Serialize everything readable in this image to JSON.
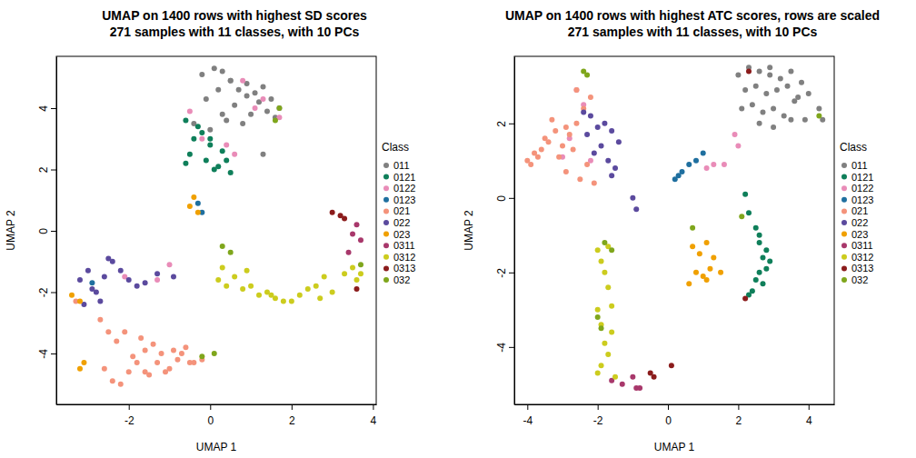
{
  "chart_data": [
    {
      "type": "scatter",
      "title": "UMAP on 1400 rows with highest SD scores",
      "subtitle": "271 samples with 11 classes, with 10 PCs",
      "x_label": "UMAP 1",
      "y_label": "UMAP 2",
      "legend_title": "Class",
      "legend": "right",
      "marker": "circle",
      "xlim": [
        -3.78,
        4.08
      ],
      "ylim": [
        -5.66,
        5.69
      ],
      "xticks": [
        -2,
        0,
        2,
        4
      ],
      "yticks": [
        -4,
        -2,
        0,
        2,
        4
      ],
      "series": [
        {
          "name": "011",
          "color": "#808080",
          "x": [
            -0.2,
            0.1,
            0.3,
            0.5,
            0.7,
            0.9,
            1.1,
            1.3,
            1.5,
            1.7,
            0.2,
            0.6,
            1.0,
            1.4,
            -0.1,
            0.4,
            0.8,
            1.2,
            1.6,
            -0.4,
            0,
            0.3,
            1.3,
            0.9,
            0.5
          ],
          "y": [
            5.1,
            5.3,
            5.2,
            4.9,
            4.6,
            4.8,
            4.5,
            4.7,
            4.3,
            4.0,
            4.6,
            4.1,
            3.8,
            3.9,
            4.3,
            3.6,
            3.5,
            4.2,
            3.7,
            3.5,
            3.3,
            3.8,
            2.5,
            4.4,
            4.9
          ]
        },
        {
          "name": "0121",
          "color": "#0f7f5a",
          "x": [
            -0.6,
            -0.3,
            0,
            0.3,
            -0.5,
            -0.1,
            0.2,
            0.5,
            -0.4,
            0,
            -0.6,
            0.4,
            -0.2,
            0.1
          ],
          "y": [
            3.6,
            3.4,
            3.0,
            2.6,
            2.5,
            2.3,
            2.1,
            1.9,
            3.0,
            2.8,
            2.2,
            2.3,
            3.2,
            2.0
          ]
        },
        {
          "name": "0122",
          "color": "#e98cb8",
          "x": [
            1.3,
            1.7,
            0.8,
            0.4,
            -0.5,
            -0.2,
            1.1,
            -1.3,
            -1.0,
            -2.1,
            0.6
          ],
          "y": [
            4.3,
            3.7,
            4.9,
            2.8,
            3.9,
            3.0,
            4.0,
            -1.6,
            -1.1,
            -1.5,
            2.5
          ]
        },
        {
          "name": "0123",
          "color": "#1f6f9f",
          "x": [
            -0.3,
            -0.2,
            -2.9
          ],
          "y": [
            0.9,
            0.6,
            -1.7
          ]
        },
        {
          "name": "021",
          "color": "#f4937b",
          "x": [
            -2.4,
            -2.2,
            -2.0,
            -1.8,
            -1.6,
            -1.4,
            -1.2,
            -1.0,
            -0.8,
            -0.6,
            -0.4,
            -0.2,
            -2.6,
            -2.3,
            -1.9,
            -1.5,
            -1.1,
            -0.7,
            -2.1,
            -1.7,
            -1.3,
            -0.9,
            -3.3,
            -2.7,
            -2.5,
            -1.6,
            -0.5
          ],
          "y": [
            -4.9,
            -5.0,
            -4.6,
            -4.3,
            -3.9,
            -3.7,
            -4.0,
            -4.5,
            -4.2,
            -3.8,
            -4.3,
            -4.2,
            -4.5,
            -3.6,
            -4.1,
            -4.7,
            -4.6,
            -4.0,
            -3.3,
            -3.5,
            -4.3,
            -3.9,
            -2.3,
            -2.9,
            -3.3,
            -4.6,
            -4.3
          ]
        },
        {
          "name": "022",
          "color": "#5b4a9e",
          "x": [
            -3.2,
            -3.0,
            -2.8,
            -2.6,
            -2.4,
            -2.2,
            -2.0,
            -1.8,
            -1.6,
            -2.7,
            -3.1,
            -2.5,
            -1.3,
            -0.9,
            -2.9
          ],
          "y": [
            -1.6,
            -1.3,
            -2.0,
            -1.5,
            -1.0,
            -1.3,
            -1.6,
            -1.8,
            -1.7,
            -2.3,
            -2.4,
            -0.9,
            -1.4,
            -1.5,
            -1.9
          ]
        },
        {
          "name": "023",
          "color": "#f0a000",
          "x": [
            -3.2,
            -3.1,
            -3.4,
            -3.2,
            -0.4,
            -0.5,
            -0.3
          ],
          "y": [
            -4.5,
            -4.3,
            -2.1,
            -2.3,
            1.1,
            0.8,
            0.6
          ]
        },
        {
          "name": "0311",
          "color": "#a8386b",
          "x": [
            3.6,
            3.5,
            3.7,
            3.4
          ],
          "y": [
            0.2,
            -0.1,
            -0.3,
            -0.7
          ]
        },
        {
          "name": "0312",
          "color": "#cccc1e",
          "x": [
            0.2,
            0.4,
            0.6,
            0.8,
            1.0,
            1.2,
            1.4,
            1.6,
            1.8,
            2.0,
            2.2,
            2.4,
            2.6,
            2.8,
            3.0,
            3.3,
            3.5,
            3.7,
            0.3,
            0.9,
            1.5,
            2.7,
            3.6
          ],
          "y": [
            -1.6,
            -1.8,
            -1.5,
            -1.9,
            -1.8,
            -2.1,
            -2.0,
            -2.2,
            -2.3,
            -2.3,
            -2.1,
            -1.9,
            -1.8,
            -1.5,
            -2.0,
            -1.4,
            -1.2,
            -1.4,
            -1.2,
            -1.3,
            -2.1,
            -2.2,
            -1.6
          ]
        },
        {
          "name": "0313",
          "color": "#8b1c1c",
          "x": [
            3.0,
            3.2,
            3.3,
            3.6
          ],
          "y": [
            0.6,
            0.5,
            0.4,
            -1.9
          ]
        },
        {
          "name": "032",
          "color": "#7fa61c",
          "x": [
            1.7,
            1.6,
            0.3,
            -0.2,
            0.1,
            0.5,
            3.7
          ],
          "y": [
            4.0,
            3.6,
            -0.5,
            -4.1,
            -4.0,
            -0.7,
            -1.1
          ]
        }
      ]
    },
    {
      "type": "scatter",
      "title": "UMAP on 1400 rows with highest ATC scores, rows are scaled",
      "subtitle": "271 samples with 11 classes, with 10 PCs",
      "x_label": "UMAP 1",
      "y_label": "UMAP 2",
      "legend_title": "Class",
      "legend": "right",
      "marker": "circle",
      "xlim": [
        -4.37,
        4.73
      ],
      "ylim": [
        -5.54,
        3.8
      ],
      "xticks": [
        -4,
        -2,
        0,
        2,
        4
      ],
      "yticks": [
        -4,
        -2,
        0,
        2
      ],
      "series": [
        {
          "name": "011",
          "color": "#808080",
          "x": [
            2.0,
            2.3,
            2.6,
            2.9,
            3.2,
            3.5,
            3.8,
            2.2,
            2.5,
            2.8,
            3.1,
            3.4,
            3.7,
            4.0,
            2.1,
            2.4,
            2.7,
            3.0,
            3.3,
            3.6,
            3.9,
            4.3,
            4.4,
            2.6,
            3.0,
            3.5,
            2.9
          ],
          "y": [
            3.3,
            3.5,
            3.4,
            3.3,
            3.2,
            3.4,
            3.1,
            2.9,
            3.0,
            2.8,
            2.9,
            3.0,
            2.7,
            2.8,
            2.4,
            2.5,
            2.3,
            2.4,
            2.2,
            2.6,
            2.1,
            2.4,
            2.1,
            2.0,
            1.9,
            2.1,
            3.5
          ]
        },
        {
          "name": "0121",
          "color": "#0f7f5a",
          "x": [
            2.2,
            2.3,
            2.5,
            2.6,
            2.7,
            2.8,
            2.9,
            2.6,
            2.5,
            2.4,
            2.7,
            2.8,
            2.3,
            2.6
          ],
          "y": [
            0.1,
            -0.4,
            -0.8,
            -1.2,
            -1.6,
            -1.9,
            -1.7,
            -2.0,
            -2.2,
            -2.5,
            -2.3,
            -1.4,
            -2.6,
            -1.0
          ]
        },
        {
          "name": "0122",
          "color": "#e98cb8",
          "x": [
            1.3,
            1.6,
            1.9,
            2.0,
            -2.6,
            -2.4,
            -2.2,
            -2.8,
            -3.0,
            1.1
          ],
          "y": [
            0.9,
            0.9,
            1.7,
            1.4,
            2.9,
            2.5,
            1.0,
            1.6,
            1.1,
            0.8
          ]
        },
        {
          "name": "0123",
          "color": "#1f6f9f",
          "x": [
            0.2,
            0.4,
            0.6,
            0.8,
            1.0,
            0.3
          ],
          "y": [
            0.5,
            0.7,
            0.9,
            1.0,
            1.2,
            0.6
          ]
        },
        {
          "name": "021",
          "color": "#f4937b",
          "x": [
            -4.0,
            -3.8,
            -3.6,
            -3.4,
            -3.2,
            -3.0,
            -2.8,
            -2.6,
            -2.4,
            -2.2,
            -3.9,
            -3.5,
            -3.1,
            -2.7,
            -2.3,
            -3.3,
            -2.9,
            -2.5,
            -2.1,
            -3.7,
            -2.6,
            -2.9
          ],
          "y": [
            1.0,
            1.2,
            1.3,
            1.5,
            1.8,
            1.4,
            1.7,
            2.0,
            2.4,
            2.7,
            0.9,
            1.6,
            1.1,
            1.3,
            0.9,
            2.1,
            0.7,
            0.5,
            0.4,
            1.1,
            2.9,
            1.9
          ]
        },
        {
          "name": "022",
          "color": "#5b4a9e",
          "x": [
            -2.4,
            -2.2,
            -2.0,
            -1.8,
            -1.6,
            -1.4,
            -2.1,
            -1.7,
            -1.5,
            -2.3,
            -1.9,
            -1.6,
            -1.0,
            -0.9
          ],
          "y": [
            2.3,
            2.2,
            1.9,
            2.0,
            1.8,
            1.5,
            1.2,
            1.0,
            0.8,
            1.7,
            1.4,
            0.6,
            0.0,
            -0.3
          ]
        },
        {
          "name": "023",
          "color": "#f0a000",
          "x": [
            0.7,
            0.9,
            1.1,
            1.3,
            0.8,
            1.0,
            1.2,
            1.5,
            0.6,
            1.1
          ],
          "y": [
            -1.3,
            -1.5,
            -1.2,
            -1.6,
            -2.0,
            -2.1,
            -1.9,
            -2.0,
            -2.3,
            -2.2
          ]
        },
        {
          "name": "0311",
          "color": "#a8386b",
          "x": [
            -1.6,
            -1.3,
            -1.0,
            -0.9,
            -0.8
          ],
          "y": [
            -4.9,
            -5.0,
            -4.8,
            -5.1,
            -5.1
          ]
        },
        {
          "name": "0312",
          "color": "#cccc1e",
          "x": [
            -2.0,
            -1.9,
            -1.8,
            -1.7,
            -2.0,
            -1.9,
            -1.6,
            -1.8,
            -1.7,
            -1.9,
            -2.0,
            -1.5,
            -1.7,
            -1.6
          ],
          "y": [
            -1.4,
            -1.7,
            -2.0,
            -2.4,
            -3.0,
            -3.4,
            -3.6,
            -3.9,
            -4.2,
            -4.5,
            -4.7,
            -4.8,
            -1.3,
            -2.9
          ]
        },
        {
          "name": "0313",
          "color": "#8b1c1c",
          "x": [
            2.2,
            2.3,
            -0.5,
            0.1,
            -0.4
          ],
          "y": [
            -2.7,
            3.4,
            -4.7,
            -4.5,
            -4.8
          ]
        },
        {
          "name": "032",
          "color": "#7fa61c",
          "x": [
            -2.4,
            -2.3,
            4.3,
            -2.0,
            -1.9,
            2.1,
            0.7,
            -1.6,
            -1.8
          ],
          "y": [
            3.4,
            3.3,
            2.2,
            -3.2,
            -3.5,
            -0.5,
            -0.8,
            -1.4,
            -1.2
          ]
        }
      ]
    }
  ]
}
